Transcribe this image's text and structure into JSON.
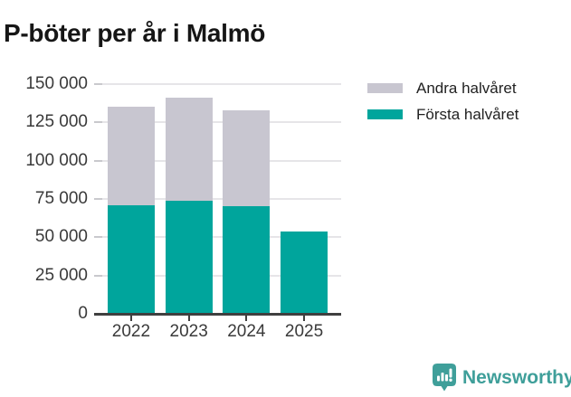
{
  "title": "P-böter per år i Malmö",
  "colors": {
    "first_half": "#00a59c",
    "second_half": "#c8c6d0",
    "grid": "#e6e5e8",
    "tick": "#c9c9cd",
    "axis": "#3f3f3f",
    "brand": "#3f9f9a"
  },
  "chart_data": {
    "type": "bar",
    "stacked": true,
    "title": "P-böter per år i Malmö",
    "categories": [
      "2022",
      "2023",
      "2024",
      "2025"
    ],
    "series": [
      {
        "name": "Första halvåret",
        "color_key": "first_half",
        "values": [
          71000,
          74000,
          70500,
          54000
        ]
      },
      {
        "name": "Andra halvåret",
        "color_key": "second_half",
        "values": [
          64000,
          67000,
          62500,
          0
        ]
      }
    ],
    "ylim": [
      0,
      150000
    ],
    "ytick_interval": 25000,
    "ytick_labels": [
      "0",
      "25 000",
      "50 000",
      "75 000",
      "100 000",
      "125 000",
      "150 000"
    ],
    "grid": true,
    "legend_position": "top-right"
  },
  "legend": {
    "items": [
      {
        "label": "Andra halvåret",
        "color_key": "second_half"
      },
      {
        "label": "Första halvåret",
        "color_key": "first_half"
      }
    ]
  },
  "footer": {
    "brand": "Newsworthy"
  }
}
